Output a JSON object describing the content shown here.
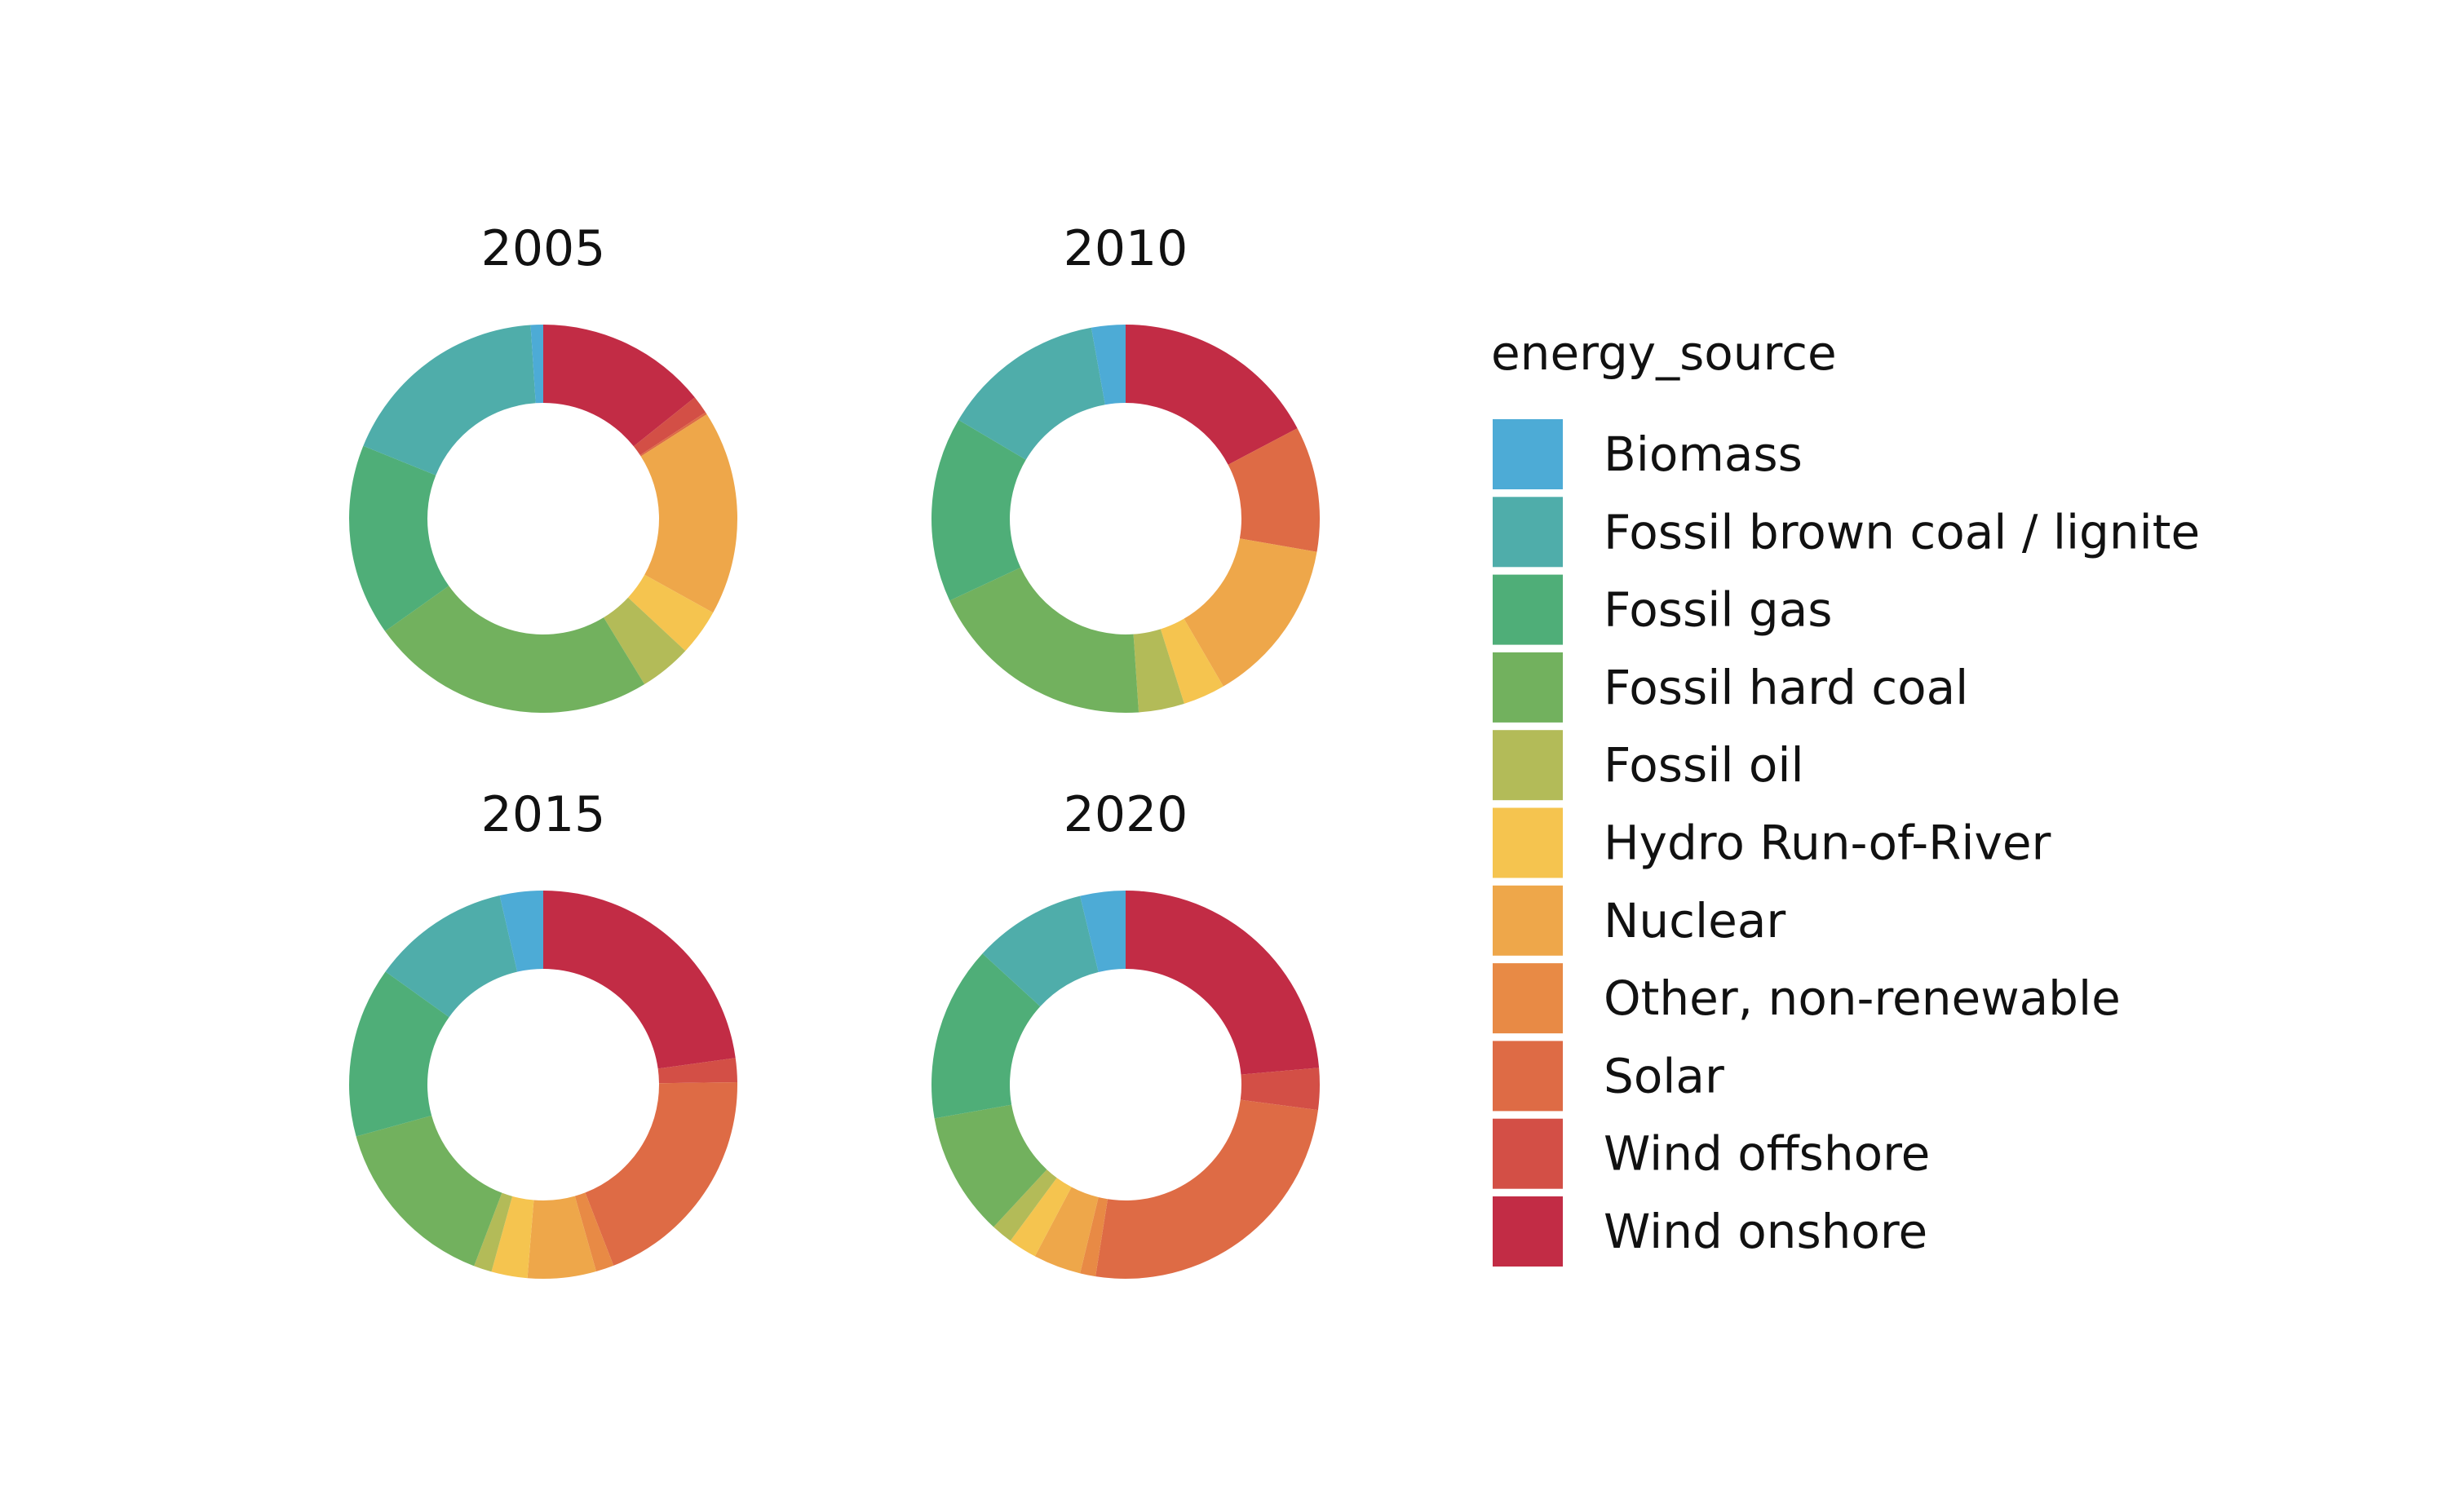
{
  "chart_data": {
    "type": "pie",
    "variant": "donut",
    "legend": {
      "title": "energy_source",
      "placement": "right"
    },
    "categories": [
      "Biomass",
      "Fossil brown coal / lignite",
      "Fossil gas",
      "Fossil hard coal",
      "Fossil oil",
      "Hydro Run-of-River",
      "Nuclear",
      "Other, non-renewable",
      "Solar",
      "Wind offshore",
      "Wind onshore"
    ],
    "colors": {
      "Biomass": "#4dabd6",
      "Fossil brown coal / lignite": "#4fadaa",
      "Fossil gas": "#4fae78",
      "Fossil hard coal": "#72b15e",
      "Fossil oil": "#b3bb58",
      "Hydro Run-of-River": "#f5c44f",
      "Nuclear": "#eea74a",
      "Other, non-renewable": "#e88a45",
      "Solar": "#de6b45",
      "Wind offshore": "#d34f46",
      "Wind onshore": "#c22c45"
    },
    "panels": [
      {
        "title": "2005",
        "values": {
          "Wind onshore": 15.1,
          "Wind offshore": 1.6,
          "Solar": 0.2,
          "Other, non-renewable": 0.0,
          "Nuclear": 18.1,
          "Hydro Run-of-River": 4.1,
          "Fossil oil": 4.6,
          "Fossil hard coal": 25.3,
          "Fossil gas": 16.9,
          "Fossil brown coal / lignite": 18.9,
          "Biomass": 1.1
        }
      },
      {
        "title": "2010",
        "values": {
          "Wind onshore": 17.7,
          "Wind offshore": 0.0,
          "Solar": 10.7,
          "Other, non-renewable": 0.0,
          "Nuclear": 14.2,
          "Hydro Run-of-River": 3.6,
          "Fossil oil": 3.9,
          "Fossil hard coal": 19.6,
          "Fossil gas": 15.8,
          "Fossil brown coal / lignite": 14.0,
          "Biomass": 2.9
        }
      },
      {
        "title": "2015",
        "values": {
          "Wind onshore": 22.8,
          "Wind offshore": 2.0,
          "Solar": 19.3,
          "Other, non-renewable": 1.5,
          "Nuclear": 5.7,
          "Hydro Run-of-River": 3.0,
          "Fossil oil": 1.5,
          "Fossil hard coal": 14.9,
          "Fossil gas": 14.2,
          "Fossil brown coal / lignite": 11.5,
          "Biomass": 3.6
        }
      },
      {
        "title": "2020",
        "values": {
          "Wind onshore": 23.8,
          "Wind offshore": 3.5,
          "Solar": 25.6,
          "Other, non-renewable": 1.3,
          "Nuclear": 4.0,
          "Hydro Run-of-River": 2.4,
          "Fossil oil": 1.8,
          "Fossil hard coal": 10.4,
          "Fossil gas": 14.7,
          "Fossil brown coal / lignite": 9.5,
          "Biomass": 3.8
        }
      }
    ]
  }
}
